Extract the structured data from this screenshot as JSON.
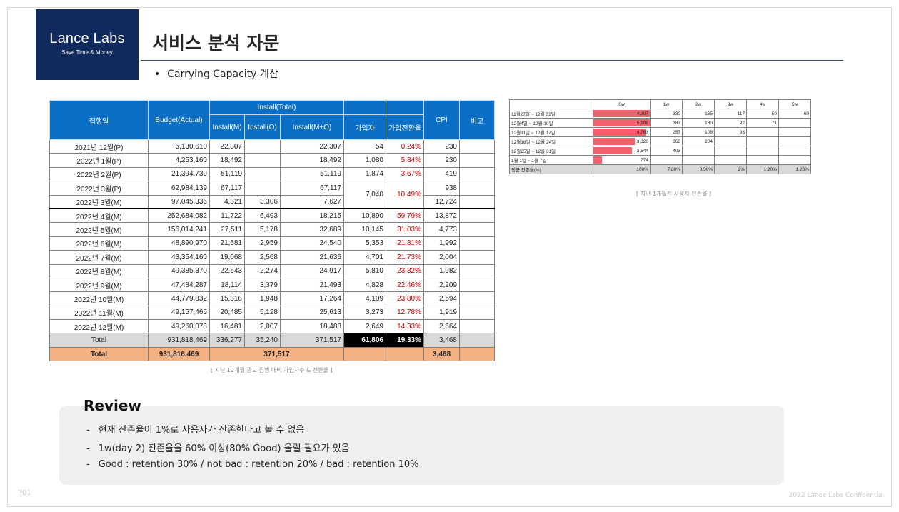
{
  "logo": {
    "name": "Lance Labs",
    "tagline": "Save Time & Money"
  },
  "title": "서비스 분석 자문",
  "subtitle": {
    "bullet": "•",
    "text": "Carrying Capacity 계산"
  },
  "main_table": {
    "headers": {
      "date": "집행일",
      "budget": "Budget(Actual)",
      "install_total": "Install(Total)",
      "install_m": "Install(M)",
      "install_o": "Install(O)",
      "install_mo": "Install(M+O)",
      "signups": "가입자",
      "conv": "가입전환율",
      "cpi": "CPI",
      "note": "비고"
    },
    "rows": [
      {
        "date": "2021년 12월(P)",
        "budget": "5,130,610",
        "im": "22,307",
        "io": "",
        "imo": "22,307",
        "sign": "54",
        "conv": "0.24%",
        "cpi": "230",
        "note": ""
      },
      {
        "date": "2022년 1월(P)",
        "budget": "4,253,160",
        "im": "18,492",
        "io": "",
        "imo": "18,492",
        "sign": "1,080",
        "conv": "5.84%",
        "cpi": "230",
        "note": ""
      },
      {
        "date": "2022년 2월(P)",
        "budget": "21,394,739",
        "im": "51,119",
        "io": "",
        "imo": "51,119",
        "sign": "1,874",
        "conv": "3.67%",
        "cpi": "419",
        "note": ""
      },
      {
        "date": "2022년 3월(P)",
        "budget": "62,984,139",
        "im": "67,117",
        "io": "",
        "imo": "67,117",
        "sign": "7,040",
        "conv": "10.49%",
        "cpi": "938",
        "note": ""
      },
      {
        "date": "2022년 3월(M)",
        "budget": "97,045,336",
        "im": "4,321",
        "io": "3,306",
        "imo": "7,627",
        "cpi": "12,724",
        "note": ""
      },
      {
        "date": "2022년 4월(M)",
        "budget": "252,684,082",
        "im": "11,722",
        "io": "6,493",
        "imo": "18,215",
        "sign": "10,890",
        "conv": "59.79%",
        "cpi": "13,872",
        "note": ""
      },
      {
        "date": "2022년 5월(M)",
        "budget": "156,014,241",
        "im": "27,511",
        "io": "5,178",
        "imo": "32,689",
        "sign": "10,145",
        "conv": "31.03%",
        "cpi": "4,773",
        "note": ""
      },
      {
        "date": "2022년 6월(M)",
        "budget": "48,890,970",
        "im": "21,581",
        "io": "2,959",
        "imo": "24,540",
        "sign": "5,353",
        "conv": "21.81%",
        "cpi": "1,992",
        "note": ""
      },
      {
        "date": "2022년 7월(M)",
        "budget": "43,354,160",
        "im": "19,068",
        "io": "2,568",
        "imo": "21,636",
        "sign": "4,701",
        "conv": "21.73%",
        "cpi": "2,004",
        "note": ""
      },
      {
        "date": "2022년 8월(M)",
        "budget": "49,385,370",
        "im": "22,643",
        "io": "2,274",
        "imo": "24,917",
        "sign": "5,810",
        "conv": "23.32%",
        "cpi": "1,982",
        "note": ""
      },
      {
        "date": "2022년 9월(M)",
        "budget": "47,484,287",
        "im": "18,114",
        "io": "3,379",
        "imo": "21,493",
        "sign": "4,828",
        "conv": "22.46%",
        "cpi": "2,209",
        "note": ""
      },
      {
        "date": "2022년 10월(M)",
        "budget": "44,779,832",
        "im": "15,316",
        "io": "1,948",
        "imo": "17,264",
        "sign": "4,109",
        "conv": "23.80%",
        "cpi": "2,594",
        "note": ""
      },
      {
        "date": "2022년 11월(M)",
        "budget": "49,157,465",
        "im": "20,485",
        "io": "5,128",
        "imo": "25,613",
        "sign": "3,273",
        "conv": "12.78%",
        "cpi": "1,919",
        "note": ""
      },
      {
        "date": "2022년 12월(M)",
        "budget": "49,260,078",
        "im": "16,481",
        "io": "2,007",
        "imo": "18,488",
        "sign": "2,649",
        "conv": "14.33%",
        "cpi": "2,664",
        "note": ""
      }
    ],
    "total1": {
      "label": "Total",
      "budget": "931,818,469",
      "im": "336,277",
      "io": "35,240",
      "imo": "371,517",
      "sign": "61,806",
      "conv": "19.33%",
      "cpi": "3,468"
    },
    "total2": {
      "label": "Total",
      "budget": "931,818,469",
      "install": "371,517",
      "cpi": "3,468"
    },
    "caption": "[ 지난 12개월 광고 집행 대비 가입자수 & 전환율 ]"
  },
  "retention_table": {
    "columns": [
      "0w",
      "1w",
      "2w",
      "3w",
      "4w",
      "5w"
    ],
    "rows": [
      {
        "label": "11월27일 ~ 12월 31일",
        "values": [
          "4,907",
          "330",
          "165",
          "117",
          "50",
          "60"
        ],
        "pct": 1.0
      },
      {
        "label": "12월4일 ~ 12월 10일",
        "values": [
          "5,198",
          "387",
          "180",
          "92",
          "71",
          ""
        ],
        "pct": 1.0
      },
      {
        "label": "12월11일 ~ 12월 17일",
        "values": [
          "4,763",
          "257",
          "108",
          "93",
          "",
          ""
        ],
        "pct": 0.92
      },
      {
        "label": "12월18일 ~ 12월 24일",
        "values": [
          "3,820",
          "363",
          "204",
          "",
          "",
          ""
        ],
        "pct": 0.73
      },
      {
        "label": "12월25일 ~ 12월 31일",
        "values": [
          "3,544",
          "403",
          "",
          "",
          "",
          ""
        ],
        "pct": 0.68
      },
      {
        "label": "1월 1일 ~ 1월 7일",
        "values": [
          "774",
          "",
          "",
          "",
          "",
          ""
        ],
        "pct": 0.15
      }
    ],
    "avg": {
      "label": "평균 잔존율(%)",
      "values": [
        "100%",
        "7.80%",
        "3.50%",
        "2%",
        "1.20%",
        "1.20%"
      ]
    },
    "caption": "[ 지난 1개월간 사용자 잔존율 ]",
    "bar_color": "#f4616c"
  },
  "review": {
    "title": "Review",
    "items": [
      "현재 잔존율이 1%로 사용자가 잔존한다고 볼 수 없음",
      "1w(day 2) 잔존율을 60% 이상(80% Good) 올릴 필요가 있음",
      "Good : retention 30% / not bad : retention 20% / bad : retention 10%"
    ],
    "dash": "-"
  },
  "page_number": "P01",
  "footer": "2022 Lance Labs Confidential"
}
